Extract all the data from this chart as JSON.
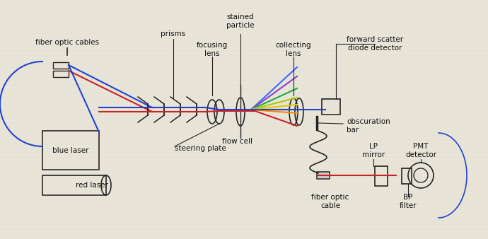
{
  "bg_color": "#e8e4d8",
  "line_color": "#222222",
  "blue_color": "#2244cc",
  "red_color": "#cc2222",
  "labels": {
    "fiber_optic_cables": "fiber optic cables",
    "prisms": "prisms",
    "focusing_lens": "focusing\nlens",
    "stained_particle": "stained\nparticle",
    "collecting_lens": "collecting\nlens",
    "forward_scatter": "forward scatter\ndiode detector",
    "steering_plate": "steering plate",
    "flow_cell": "flow cell",
    "obscuration_bar": "obscuration\nbar",
    "lp_mirror": "LP\nmirror",
    "pmt_detector": "PMT\ndetector",
    "blue_laser": "blue laser",
    "red_laser": "red laser",
    "fiber_optic_cable": "fiber optic\ncable",
    "bp_filter": "BP\nfilter"
  },
  "label_fontsize": 7.5,
  "text_color": "#111111"
}
